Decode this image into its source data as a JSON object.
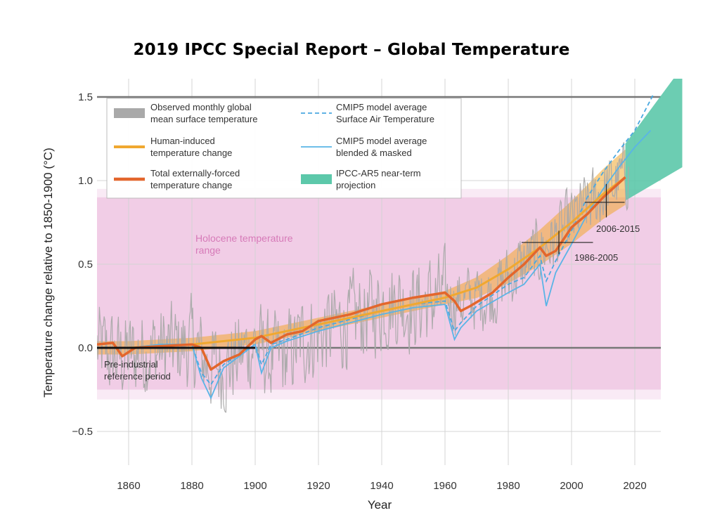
{
  "title": "2019 IPCC Special Report – Global Temperature",
  "colors": {
    "observed": "#a9a9a9",
    "human_induced": "#f0a830",
    "total_forced": "#e3662c",
    "cmip5_sat": "#4aa8e0",
    "cmip5_blended": "#5ab4e6",
    "projection": "#5cc8aa",
    "holocene": "#efc4e2",
    "reference_line": "#777777"
  },
  "chart_data": {
    "type": "line",
    "title": "2019 IPCC Special Report – Global Temperature",
    "xlabel": "Year",
    "ylabel": "Temperature change relative to 1850-1900 (°C)",
    "xlim": [
      1848,
      2035
    ],
    "ylim": [
      -0.7,
      1.6
    ],
    "x_ticks": [
      1860,
      1880,
      1900,
      1920,
      1940,
      1960,
      1980,
      2000,
      2020
    ],
    "x_tick_labels": [
      "1860",
      "1880",
      "1900",
      "1920",
      "1940",
      "1960",
      "1980",
      "2000",
      "2020"
    ],
    "y_ticks": [
      -0.5,
      0.0,
      0.5,
      1.0,
      1.5
    ],
    "y_tick_labels": [
      "−0.5",
      "0.0",
      "0.5",
      "1.0",
      "1.5"
    ],
    "grid": true,
    "legend_position": "top-left",
    "legend": [
      {
        "key": "observed",
        "label": [
          "Observed monthly global",
          "mean surface temperature"
        ],
        "style": "thick-gray"
      },
      {
        "key": "human_induced",
        "label": [
          "Human-induced",
          "temperature change"
        ],
        "style": "orange-line"
      },
      {
        "key": "total_forced",
        "label": [
          "Total externally-forced",
          "temperature change"
        ],
        "style": "red-orange-line"
      },
      {
        "key": "cmip5_sat",
        "label": [
          "CMIP5 model average",
          "Surface Air Temperature"
        ],
        "style": "dashed-blue"
      },
      {
        "key": "cmip5_blended",
        "label": [
          "CMIP5 model average",
          "blended & masked"
        ],
        "style": "solid-blue"
      },
      {
        "key": "projection",
        "label": [
          "IPCC-AR5 near-term",
          "projection"
        ],
        "style": "teal-box"
      }
    ],
    "holocene_range": {
      "label": [
        "Holocene temperature",
        "range"
      ],
      "y_range": [
        -0.25,
        0.9
      ]
    },
    "reference_lines": [
      0.0,
      1.5
    ],
    "preindustrial_period": {
      "label": [
        "Pre-industrial",
        "reference period"
      ],
      "x_range": [
        1850,
        1900
      ],
      "y": 0.0
    },
    "crosses": [
      {
        "label": "1986-2005",
        "x_range": [
          1986,
          2005
        ],
        "center_x": 1996,
        "y_center": 0.63,
        "y_range": [
          0.56,
          0.7
        ]
      },
      {
        "label": "2006-2015",
        "x_range": [
          2006,
          2015
        ],
        "center_x": 2011,
        "y_center": 0.87,
        "y_range": [
          0.78,
          0.98
        ]
      }
    ],
    "series": [
      {
        "key": "observed",
        "kind": "noisy",
        "name": "Observed monthly global mean surface temperature",
        "x": [
          1850,
          1855,
          1860,
          1865,
          1870,
          1875,
          1880,
          1885,
          1890,
          1895,
          1900,
          1905,
          1910,
          1915,
          1920,
          1925,
          1930,
          1935,
          1940,
          1945,
          1950,
          1955,
          1960,
          1965,
          1970,
          1975,
          1980,
          1985,
          1990,
          1995,
          2000,
          2005,
          2010,
          2015,
          2018
        ],
        "y": [
          0.0,
          -0.05,
          -0.05,
          -0.02,
          0.0,
          0.0,
          0.02,
          -0.1,
          -0.12,
          -0.05,
          0.03,
          -0.08,
          -0.05,
          0.05,
          0.08,
          0.12,
          0.16,
          0.2,
          0.25,
          0.28,
          0.25,
          0.28,
          0.3,
          0.28,
          0.3,
          0.32,
          0.42,
          0.5,
          0.58,
          0.65,
          0.75,
          0.85,
          0.92,
          1.0,
          1.05
        ],
        "amplitude": 0.24
      },
      {
        "key": "human_induced",
        "kind": "line",
        "name": "Human-induced temperature change",
        "x": [
          1850,
          1860,
          1870,
          1880,
          1890,
          1900,
          1910,
          1920,
          1930,
          1940,
          1950,
          1960,
          1970,
          1980,
          1990,
          2000,
          2010,
          2017
        ],
        "y": [
          0.0,
          0.0,
          0.01,
          0.02,
          0.04,
          0.06,
          0.1,
          0.14,
          0.18,
          0.22,
          0.26,
          0.3,
          0.36,
          0.47,
          0.6,
          0.75,
          0.92,
          1.02
        ]
      },
      {
        "key": "total_forced",
        "kind": "line",
        "name": "Total externally-forced temperature change",
        "x": [
          1850,
          1855,
          1858,
          1862,
          1870,
          1880,
          1883,
          1886,
          1890,
          1895,
          1900,
          1902,
          1905,
          1910,
          1915,
          1920,
          1930,
          1940,
          1950,
          1960,
          1963,
          1965,
          1968,
          1975,
          1980,
          1985,
          1990,
          1992,
          1995,
          2000,
          2005,
          2010,
          2017
        ],
        "y": [
          0.02,
          0.03,
          -0.05,
          0.0,
          0.01,
          0.02,
          0.0,
          -0.13,
          -0.08,
          -0.04,
          0.05,
          0.07,
          0.03,
          0.08,
          0.1,
          0.16,
          0.2,
          0.26,
          0.3,
          0.33,
          0.28,
          0.22,
          0.25,
          0.33,
          0.42,
          0.5,
          0.6,
          0.55,
          0.58,
          0.72,
          0.8,
          0.9,
          1.02
        ]
      },
      {
        "key": "cmip5_sat",
        "kind": "dashed",
        "name": "CMIP5 model average Surface Air Temperature",
        "x": [
          1850,
          1860,
          1870,
          1880,
          1883,
          1886,
          1890,
          1900,
          1902,
          1905,
          1910,
          1920,
          1930,
          1940,
          1950,
          1960,
          1963,
          1965,
          1970,
          1980,
          1985,
          1990,
          1992,
          1995,
          2000,
          2005,
          2010,
          2015,
          2020,
          2026
        ],
        "y": [
          0.0,
          0.0,
          0.02,
          0.02,
          -0.15,
          -0.22,
          -0.1,
          0.02,
          -0.1,
          0.02,
          0.05,
          0.12,
          0.17,
          0.22,
          0.26,
          0.28,
          0.1,
          0.15,
          0.25,
          0.38,
          0.42,
          0.55,
          0.4,
          0.52,
          0.7,
          0.9,
          1.05,
          1.18,
          1.3,
          1.52
        ]
      },
      {
        "key": "cmip5_blended",
        "kind": "line",
        "name": "CMIP5 model average blended & masked",
        "x": [
          1850,
          1860,
          1870,
          1880,
          1883,
          1886,
          1890,
          1900,
          1902,
          1905,
          1910,
          1920,
          1930,
          1940,
          1950,
          1960,
          1963,
          1965,
          1970,
          1980,
          1985,
          1990,
          1992,
          1995,
          2000,
          2005,
          2010,
          2015,
          2020,
          2025
        ],
        "y": [
          0.0,
          0.0,
          0.02,
          0.02,
          -0.18,
          -0.3,
          -0.12,
          0.02,
          -0.15,
          0.0,
          0.04,
          0.1,
          0.15,
          0.2,
          0.24,
          0.26,
          0.05,
          0.12,
          0.22,
          0.33,
          0.38,
          0.5,
          0.25,
          0.45,
          0.62,
          0.8,
          0.95,
          1.08,
          1.2,
          1.3
        ]
      }
    ],
    "projection": {
      "key": "projection",
      "name": "IPCC-AR5 near-term projection",
      "x": [
        2017,
        2035
      ],
      "lower": [
        0.88,
        1.08
      ],
      "upper": [
        1.22,
        1.68
      ]
    }
  }
}
